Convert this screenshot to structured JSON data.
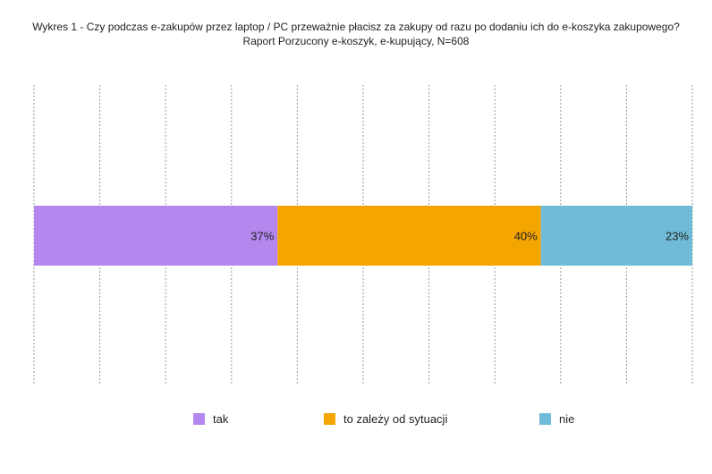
{
  "chart_data": {
    "type": "bar",
    "orientation": "horizontal",
    "stacked": true,
    "percent_stacked": true,
    "title": "Wykres 1 - Czy podczas e-zakupów przez laptop / PC przeważnie płacisz za zakupy od razu po dodaniu ich do e-koszyka zakupowego?",
    "subtitle": "Raport Porzucony e-koszyk, e-kupujący, N=608",
    "xlim": [
      0,
      100
    ],
    "grid": true,
    "legend_position": "bottom",
    "series": [
      {
        "name": "tak",
        "values": [
          37
        ],
        "label": "37%",
        "color": "#b487ee"
      },
      {
        "name": "to zależy od sytuacji",
        "values": [
          40
        ],
        "label": "40%",
        "color": "#f5a500"
      },
      {
        "name": "nie",
        "values": [
          23
        ],
        "label": "23%",
        "color": "#70bcd8"
      }
    ]
  }
}
